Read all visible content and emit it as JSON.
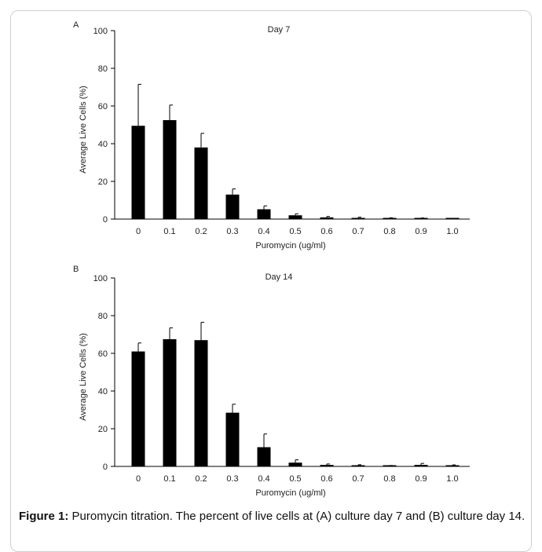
{
  "caption": {
    "label": "Figure 1:",
    "text": "Puromycin titration. The percent of live cells at (A) culture day 7 and (B) culture day 14."
  },
  "colors": {
    "bar": "#000000",
    "axis": "#000000",
    "text": "#222222"
  },
  "chart_data": [
    {
      "type": "bar",
      "panel": "A",
      "title": "Day 7",
      "xlabel": "Puromycin (ug/ml)",
      "ylabel": "Average Live Cells (%)",
      "categories": [
        "0",
        "0.1",
        "0.2",
        "0.3",
        "0.4",
        "0.5",
        "0.6",
        "0.7",
        "0.8",
        "0.9",
        "1.0"
      ],
      "values": [
        49.5,
        52.5,
        38,
        13,
        5.2,
        2,
        0.9,
        0.6,
        0.4,
        0.3,
        0.2
      ],
      "errors": [
        22,
        8,
        7.5,
        3,
        1.8,
        0.8,
        0.5,
        0.4,
        0.3,
        0.3,
        0.2
      ],
      "ylim": [
        0,
        100
      ],
      "yticks": [
        0,
        20,
        40,
        60,
        80,
        100
      ],
      "grid": false
    },
    {
      "type": "bar",
      "panel": "B",
      "title": "Day 14",
      "xlabel": "Puromycin (ug/ml)",
      "ylabel": "Average Live Cells (%)",
      "categories": [
        "0",
        "0.1",
        "0.2",
        "0.3",
        "0.4",
        "0.5",
        "0.6",
        "0.7",
        "0.8",
        "0.9",
        "1.0"
      ],
      "values": [
        61,
        67.5,
        67,
        28.5,
        10.2,
        2,
        0.8,
        0.3,
        0.2,
        0.8,
        0.3
      ],
      "errors": [
        4.5,
        6,
        9.5,
        4.5,
        7,
        1.5,
        0.5,
        0.6,
        0.3,
        0.8,
        0.5
      ],
      "ylim": [
        0,
        100
      ],
      "yticks": [
        0,
        20,
        40,
        60,
        80,
        100
      ],
      "grid": false
    }
  ]
}
